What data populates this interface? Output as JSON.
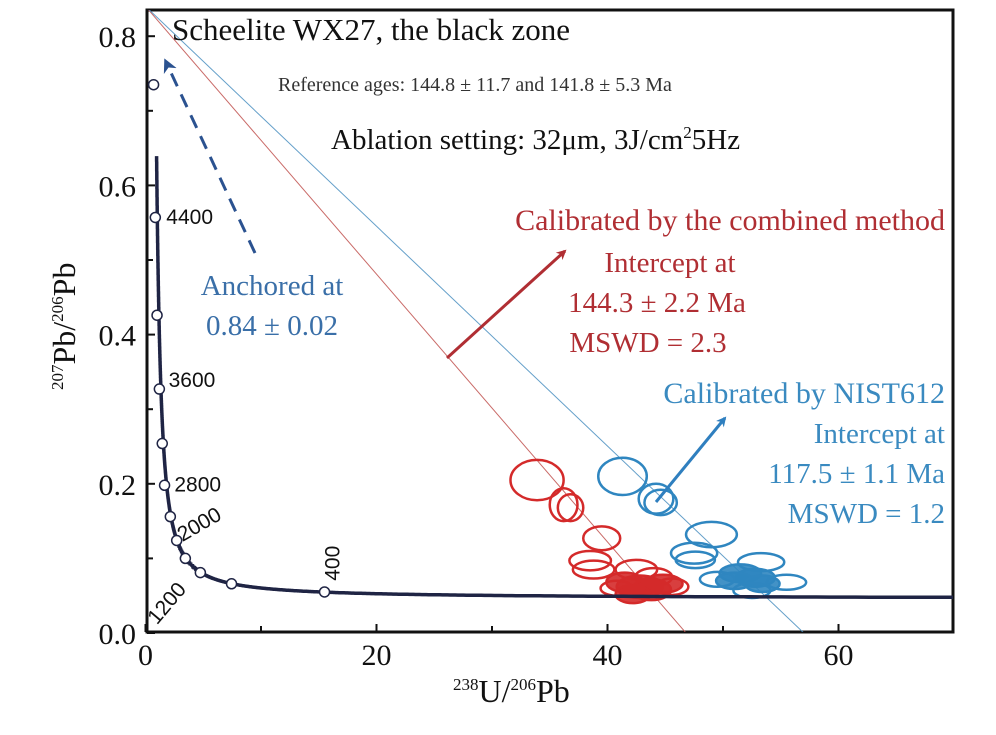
{
  "chart_data": {
    "type": "scatter",
    "title": "Scheelite WX27, the black zone",
    "subtitle": "Reference ages: 144.8 ± 11.7 and 141.8 ± 5.3 Ma",
    "ablation": {
      "prefix": "Ablation setting: 32μm, 3J/cm",
      "sup": "2",
      "suffix": "5Hz"
    },
    "xlabel": {
      "sup1": "238",
      "main1": "U/",
      "sup2": "206",
      "main2": "Pb"
    },
    "ylabel": {
      "sup1": "207",
      "main1": "Pb/",
      "sup2": "206",
      "main2": "Pb"
    },
    "xlim": [
      0,
      70
    ],
    "ylim": [
      0,
      0.84
    ],
    "x_ticks": [
      0,
      20,
      40,
      60
    ],
    "x_tick_labels": [
      "0",
      "20",
      "40",
      "60"
    ],
    "x_minor_ticks": [
      10,
      30,
      50
    ],
    "y_ticks": [
      0.0,
      0.2,
      0.4,
      0.6,
      0.8
    ],
    "y_tick_labels": [
      "0.0",
      "0.2",
      "0.4",
      "0.6",
      "0.8"
    ],
    "y_minor_ticks": [
      0.1,
      0.3,
      0.5,
      0.7
    ],
    "grid": false,
    "concordia": {
      "color": "#1f2444",
      "markers": [
        {
          "x": 0.7,
          "y": 0.735
        },
        {
          "x": 0.85,
          "y": 0.557
        },
        {
          "x": 1.0,
          "y": 0.426
        },
        {
          "x": 1.2,
          "y": 0.327
        },
        {
          "x": 1.45,
          "y": 0.254
        },
        {
          "x": 1.65,
          "y": 0.198
        },
        {
          "x": 2.15,
          "y": 0.156
        },
        {
          "x": 2.7,
          "y": 0.124
        },
        {
          "x": 3.45,
          "y": 0.1
        },
        {
          "x": 4.75,
          "y": 0.081
        },
        {
          "x": 7.45,
          "y": 0.066
        },
        {
          "x": 15.5,
          "y": 0.055
        }
      ],
      "labels": [
        {
          "text": "4400",
          "x": 1.8,
          "y": 0.548,
          "rotate": 0
        },
        {
          "text": "3600",
          "x": 2.0,
          "y": 0.33,
          "rotate": 0
        },
        {
          "text": "2800",
          "x": 2.5,
          "y": 0.19,
          "rotate": 0
        },
        {
          "text": "2000",
          "x": 3.2,
          "y": 0.122,
          "rotate": -30
        },
        {
          "text": "1200",
          "x": 1.0,
          "y": 0.01,
          "rotate": -50
        },
        {
          "text": "400",
          "x": 16.8,
          "y": 0.07,
          "rotate": -90
        }
      ]
    },
    "series": [
      {
        "name": "Calibrated by the combined method",
        "color": "#d42a2a",
        "intercept_text": [
          "Intercept at",
          "144.3 ± 2.2 Ma",
          "MSWD = 2.3"
        ],
        "line": {
          "x0": 0,
          "y0": 0.84,
          "x1": 46.8,
          "y1": 0
        },
        "ellipses": [
          {
            "x": 33.9,
            "y": 0.205,
            "rx": 2.3,
            "ry": 0.027,
            "filled": false
          },
          {
            "x": 36.2,
            "y": 0.172,
            "rx": 1.2,
            "ry": 0.022,
            "filled": false
          },
          {
            "x": 36.8,
            "y": 0.168,
            "rx": 1.1,
            "ry": 0.018,
            "filled": false
          },
          {
            "x": 39.5,
            "y": 0.127,
            "rx": 1.6,
            "ry": 0.016,
            "filled": false
          },
          {
            "x": 38.5,
            "y": 0.097,
            "rx": 1.8,
            "ry": 0.013,
            "filled": false
          },
          {
            "x": 38.8,
            "y": 0.085,
            "rx": 1.8,
            "ry": 0.012,
            "filled": false
          },
          {
            "x": 42.5,
            "y": 0.085,
            "rx": 1.8,
            "ry": 0.013,
            "filled": false
          },
          {
            "x": 44.0,
            "y": 0.075,
            "rx": 1.6,
            "ry": 0.012,
            "filled": false
          },
          {
            "x": 41.5,
            "y": 0.068,
            "rx": 1.6,
            "ry": 0.013,
            "filled": true
          },
          {
            "x": 42.8,
            "y": 0.062,
            "rx": 2.0,
            "ry": 0.015,
            "filled": true
          },
          {
            "x": 43.8,
            "y": 0.058,
            "rx": 1.7,
            "ry": 0.014,
            "filled": true
          },
          {
            "x": 44.8,
            "y": 0.066,
            "rx": 1.7,
            "ry": 0.012,
            "filled": true
          },
          {
            "x": 42.2,
            "y": 0.052,
            "rx": 1.5,
            "ry": 0.012,
            "filled": true
          },
          {
            "x": 45.6,
            "y": 0.062,
            "rx": 1.4,
            "ry": 0.011,
            "filled": false
          },
          {
            "x": 40.8,
            "y": 0.06,
            "rx": 1.4,
            "ry": 0.01,
            "filled": false
          }
        ]
      },
      {
        "name": "Calibrated by NIST612",
        "color": "#2f86c0",
        "intercept_text": [
          "Intercept at",
          "117.5 ± 1.1 Ma",
          "MSWD = 1.2"
        ],
        "line": {
          "x0": 0,
          "y0": 0.84,
          "x1": 57.0,
          "y1": 0
        },
        "ellipses": [
          {
            "x": 41.3,
            "y": 0.21,
            "rx": 2.1,
            "ry": 0.025,
            "filled": false
          },
          {
            "x": 44.2,
            "y": 0.18,
            "rx": 1.5,
            "ry": 0.02,
            "filled": false
          },
          {
            "x": 44.6,
            "y": 0.175,
            "rx": 1.4,
            "ry": 0.017,
            "filled": false
          },
          {
            "x": 49.0,
            "y": 0.132,
            "rx": 2.2,
            "ry": 0.017,
            "filled": false
          },
          {
            "x": 47.5,
            "y": 0.107,
            "rx": 2.0,
            "ry": 0.014,
            "filled": false
          },
          {
            "x": 47.6,
            "y": 0.098,
            "rx": 1.7,
            "ry": 0.011,
            "filled": false
          },
          {
            "x": 53.3,
            "y": 0.095,
            "rx": 2.0,
            "ry": 0.012,
            "filled": false
          },
          {
            "x": 51.5,
            "y": 0.08,
            "rx": 1.8,
            "ry": 0.012,
            "filled": true
          },
          {
            "x": 52.8,
            "y": 0.074,
            "rx": 1.7,
            "ry": 0.012,
            "filled": true
          },
          {
            "x": 51.0,
            "y": 0.07,
            "rx": 1.6,
            "ry": 0.011,
            "filled": true
          },
          {
            "x": 53.4,
            "y": 0.066,
            "rx": 1.5,
            "ry": 0.011,
            "filled": true
          },
          {
            "x": 55.5,
            "y": 0.068,
            "rx": 1.7,
            "ry": 0.01,
            "filled": false
          },
          {
            "x": 49.5,
            "y": 0.072,
            "rx": 1.5,
            "ry": 0.01,
            "filled": false
          },
          {
            "x": 52.5,
            "y": 0.057,
            "rx": 1.6,
            "ry": 0.01,
            "filled": false
          }
        ]
      }
    ],
    "annotations": {
      "anchored": [
        "Anchored at",
        "0.84 ± 0.02"
      ],
      "anchored_color": "#3a6fa8",
      "combined_color": "#b02e33",
      "nist_color": "#3a8ac0"
    }
  }
}
